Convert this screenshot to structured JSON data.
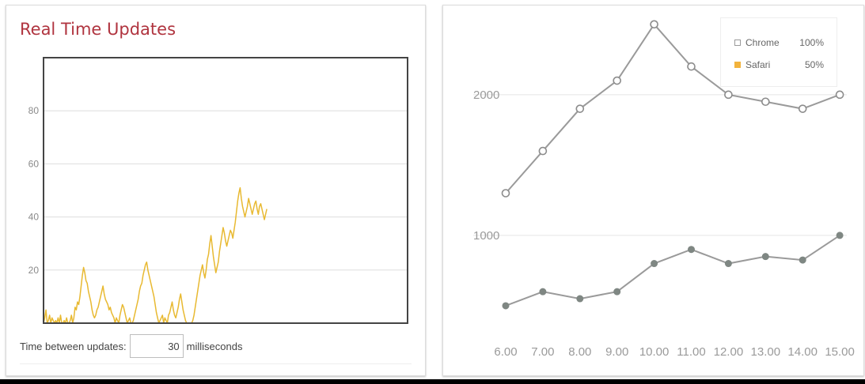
{
  "realtime": {
    "title": "Real Time Updates",
    "controls": {
      "label": "Time between updates:",
      "value": "30",
      "unit": "milliseconds"
    }
  },
  "legend": {
    "items": [
      {
        "label": "Chrome",
        "value": "100%",
        "swatch": "outline",
        "color": "#9a9a9a"
      },
      {
        "label": "Safari",
        "value": "50%",
        "swatch": "filled",
        "color": "#f2b33d"
      }
    ]
  },
  "chart_data": [
    {
      "type": "line",
      "xlim": [
        0,
        300
      ],
      "ylim": [
        0,
        100
      ],
      "yticks": [
        20,
        40,
        60,
        80
      ],
      "grid": true,
      "color": "#e8b931",
      "series": [
        {
          "values": [
            0,
            2,
            5,
            0,
            1,
            3,
            0,
            2,
            1,
            0,
            1,
            0,
            2,
            0,
            3,
            0,
            0,
            1,
            0,
            2,
            0,
            0,
            1,
            3,
            0,
            2,
            6,
            5,
            8,
            7,
            10,
            14,
            18,
            21,
            19,
            16,
            15,
            12,
            10,
            8,
            5,
            3,
            2,
            3,
            5,
            6,
            8,
            10,
            12,
            14,
            11,
            9,
            8,
            7,
            5,
            6,
            4,
            3,
            2,
            0,
            2,
            1,
            0,
            3,
            5,
            7,
            6,
            4,
            2,
            0,
            1,
            2,
            0,
            0,
            1,
            3,
            5,
            7,
            9,
            12,
            14,
            15,
            18,
            20,
            22,
            23,
            20,
            18,
            16,
            14,
            12,
            10,
            7,
            4,
            2,
            0,
            1,
            2,
            3,
            0,
            2,
            1,
            0,
            3,
            4,
            6,
            8,
            5,
            3,
            2,
            4,
            6,
            9,
            11,
            8,
            5,
            3,
            1,
            0,
            0,
            0,
            0,
            0,
            1,
            3,
            6,
            9,
            12,
            15,
            18,
            20,
            22,
            19,
            17,
            20,
            24,
            26,
            30,
            33,
            29,
            25,
            22,
            19,
            21,
            23,
            27,
            30,
            33,
            36,
            34,
            31,
            29,
            31,
            33,
            35,
            34,
            32,
            35,
            38,
            42,
            46,
            49,
            51,
            47,
            44,
            42,
            40,
            42,
            44,
            47,
            45,
            43,
            41,
            43,
            45,
            46,
            43,
            41,
            44,
            45,
            43,
            41,
            39,
            41,
            43
          ]
        }
      ]
    },
    {
      "type": "line",
      "x": [
        "6.00",
        "7.00",
        "8.00",
        "9.00",
        "10.00",
        "11.00",
        "12.00",
        "13.00",
        "14.00",
        "15.00"
      ],
      "ylim": [
        0,
        2600
      ],
      "yticks": [
        1000,
        2000
      ],
      "grid": true,
      "legend_position": "top-right",
      "series": [
        {
          "name": "Chrome",
          "marker": "hollow",
          "values": [
            1300,
            1600,
            1900,
            2100,
            2500,
            2200,
            2000,
            1950,
            1900,
            2000
          ]
        },
        {
          "name": "Safari",
          "marker": "filled",
          "values": [
            500,
            600,
            550,
            600,
            800,
            900,
            800,
            850,
            825,
            1000
          ]
        }
      ]
    }
  ]
}
